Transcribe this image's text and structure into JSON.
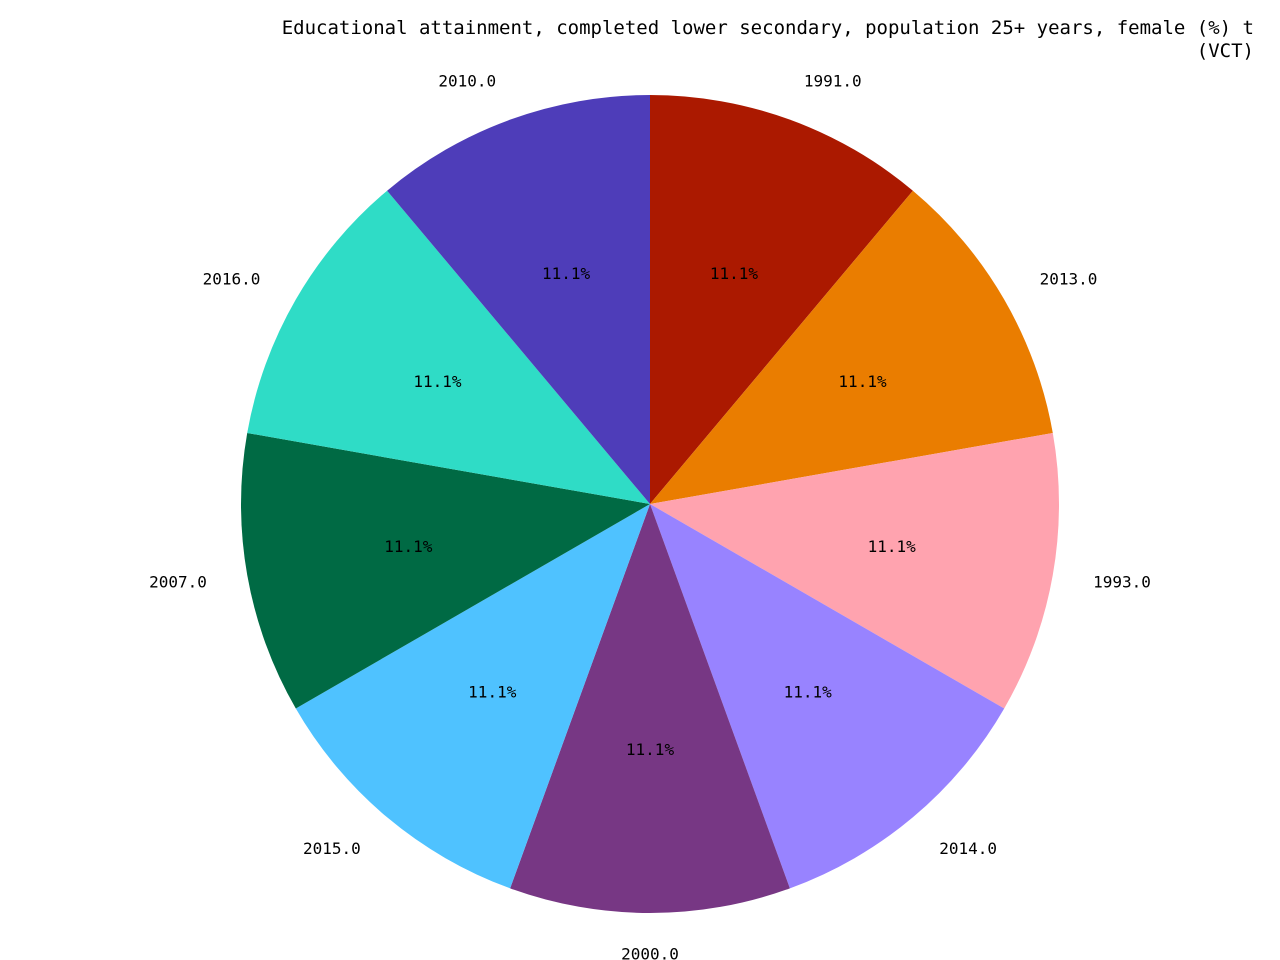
{
  "chart_data": {
    "type": "pie",
    "title_lines": [
      "Educational attainment, completed lower secondary, population 25+ years, female (%) t",
      "(VCT)"
    ],
    "start_angle_deg": 90,
    "direction": "clockwise",
    "slices": [
      {
        "label": "1991.0",
        "value": 1,
        "percent_label": "11.1%",
        "color": "#ab1900"
      },
      {
        "label": "2013.0",
        "value": 1,
        "percent_label": "11.1%",
        "color": "#ea7d00"
      },
      {
        "label": "1993.0",
        "value": 1,
        "percent_label": "11.1%",
        "color": "#ffa3af"
      },
      {
        "label": "2014.0",
        "value": 1,
        "percent_label": "11.1%",
        "color": "#9883ff"
      },
      {
        "label": "2000.0",
        "value": 1,
        "percent_label": "11.1%",
        "color": "#773784"
      },
      {
        "label": "2015.0",
        "value": 1,
        "percent_label": "11.1%",
        "color": "#4fc2ff"
      },
      {
        "label": "2007.0",
        "value": 1,
        "percent_label": "11.1%",
        "color": "#006a44"
      },
      {
        "label": "2016.0",
        "value": 1,
        "percent_label": "11.1%",
        "color": "#2fdcc6"
      },
      {
        "label": "2010.0",
        "value": 1,
        "percent_label": "11.1%",
        "color": "#4e3db9"
      }
    ]
  }
}
